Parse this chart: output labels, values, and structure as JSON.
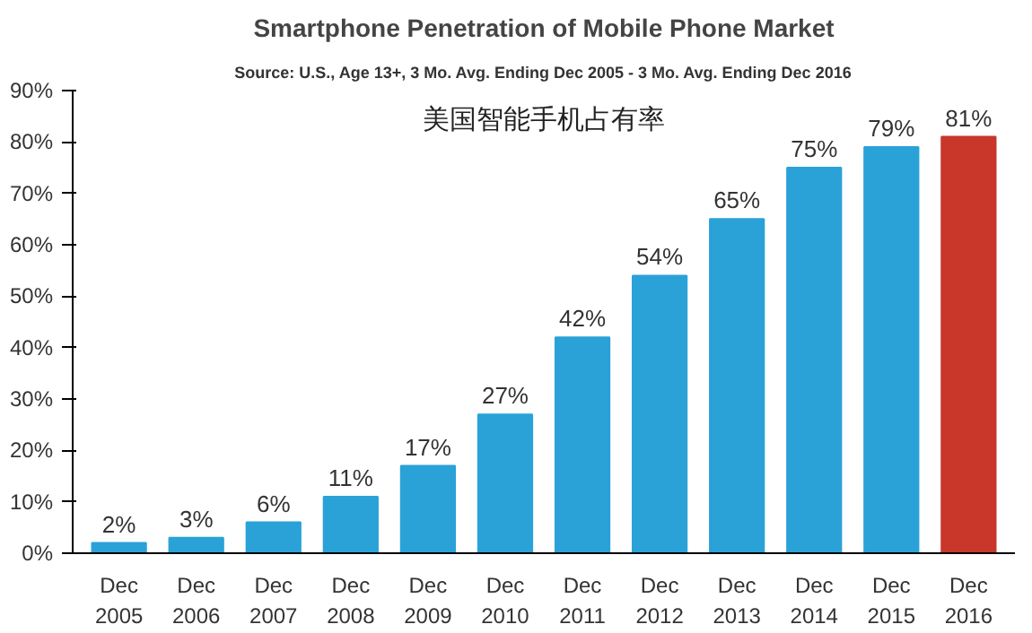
{
  "chart_data": {
    "type": "bar",
    "title": "Smartphone Penetration of Mobile Phone Market",
    "subtitle": "Source: U.S., Age 13+, 3 Mo. Avg. Ending Dec 2005 - 3 Mo. Avg. Ending Dec 2016",
    "annotations": [
      "美国智能手机占有率"
    ],
    "categories": [
      "Dec\n2005",
      "Dec\n2006",
      "Dec\n2007",
      "Dec\n2008",
      "Dec\n2009",
      "Dec\n2010",
      "Dec\n2011",
      "Dec\n2012",
      "Dec\n2013",
      "Dec\n2014",
      "Dec\n2015",
      "Dec\n2016"
    ],
    "values": [
      2,
      3,
      6,
      11,
      17,
      27,
      42,
      54,
      65,
      75,
      79,
      81
    ],
    "colors": [
      "#2aa2d8",
      "#2aa2d8",
      "#2aa2d8",
      "#2aa2d8",
      "#2aa2d8",
      "#2aa2d8",
      "#2aa2d8",
      "#2aa2d8",
      "#2aa2d8",
      "#2aa2d8",
      "#2aa2d8",
      "#c8372a"
    ],
    "value_labels": [
      "2%",
      "3%",
      "6%",
      "11%",
      "17%",
      "27%",
      "42%",
      "54%",
      "65%",
      "75%",
      "79%",
      "81%"
    ],
    "ylim": [
      0,
      90
    ],
    "yticks": [
      {
        "value": 0,
        "label": "0%"
      },
      {
        "value": 10,
        "label": "10%"
      },
      {
        "value": 20,
        "label": "20%"
      },
      {
        "value": 30,
        "label": "30%"
      },
      {
        "value": 40,
        "label": "40%"
      },
      {
        "value": 50,
        "label": "50%"
      },
      {
        "value": 60,
        "label": "60%"
      },
      {
        "value": 70,
        "label": "70%"
      },
      {
        "value": 80,
        "label": "80%"
      },
      {
        "value": 90,
        "label": "90%"
      }
    ],
    "grid": false
  }
}
